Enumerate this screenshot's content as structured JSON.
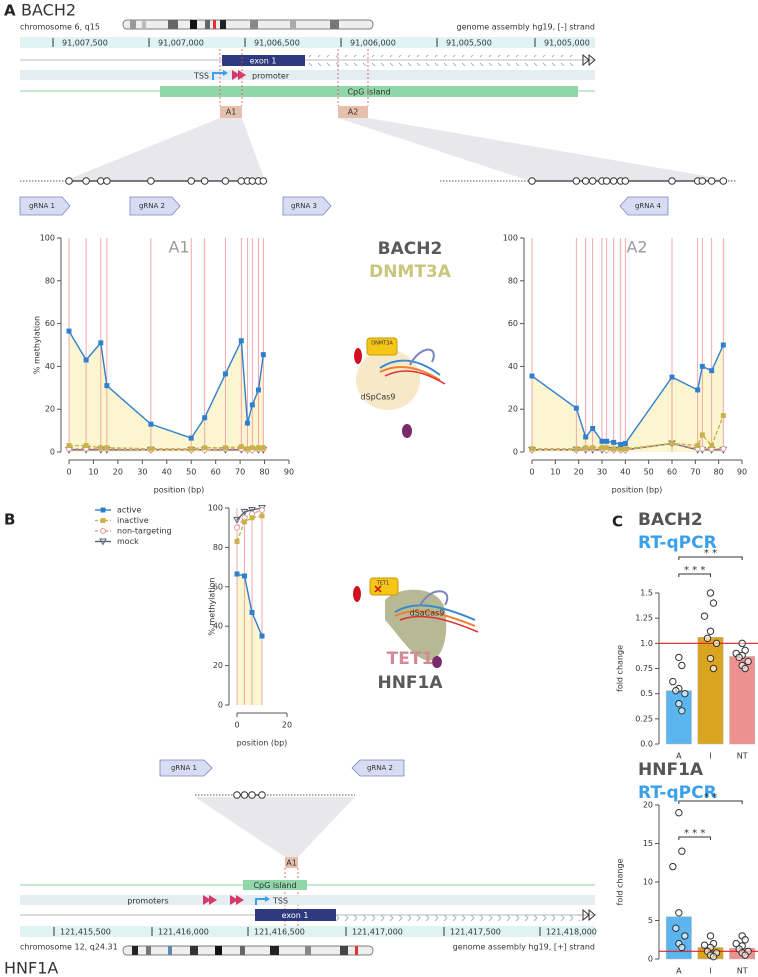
{
  "panel_labels": [
    "A",
    "B",
    "C"
  ],
  "bach2_locus": {
    "gene": "BACH2",
    "chromosome": "chromosome 6, q15",
    "assembly": "genome assembly hg19, [-] strand",
    "coordinates": [
      "91,007,500",
      "91,007,000",
      "91,006,500",
      "91,006,000",
      "91,005,500",
      "91,005,000"
    ],
    "exon": "exon 1",
    "tss": "TSS",
    "promoter": "promoter",
    "cpg_island": "CpG island",
    "regions": [
      "A1",
      "A2"
    ],
    "grnas": [
      "gRNA 1",
      "gRNA 2",
      "gRNA 3",
      "gRNA 4"
    ],
    "target": "BACH2",
    "effector": "DNMT3A",
    "dcas9": "dSpCas9"
  },
  "hnf1a_locus": {
    "gene": "HNF1A",
    "chromosome": "chromosome 12, q24.31",
    "assembly": "genome assembly hg19, [+] strand",
    "coordinates": [
      "121,415,500",
      "121,416,000",
      "121,416,500",
      "121,417,000",
      "121,417,500",
      "121,418,000"
    ],
    "exon": "exon 1",
    "tss": "TSS",
    "promoters": "promoters",
    "cpg_island": "CpG island",
    "regions": [
      "A1"
    ],
    "grnas": [
      "gRNA 1",
      "gRNA 2"
    ],
    "target": "HNF1A",
    "effector": "TET1",
    "dcas9": "dSaCas9"
  },
  "chart_data": [
    {
      "type": "line",
      "label": "A1",
      "ylabel": "% methylation",
      "xlabel": "position (bp)",
      "x": [
        0,
        7,
        13,
        15.5,
        33.5,
        50,
        55.5,
        64,
        70.5,
        73,
        75,
        77.5,
        79.5
      ],
      "series": [
        {
          "color": "#2f7fcf",
          "marker": "square",
          "dash": false,
          "fill": "#fbf5d0",
          "values": [
            56.5,
            43,
            51,
            31,
            13,
            6.5,
            16,
            36.5,
            52,
            13.5,
            22,
            29,
            45.5
          ]
        },
        {
          "color": "#c9b24a",
          "marker": "square",
          "dash": true,
          "values": [
            3,
            3,
            2,
            2,
            1.5,
            1.5,
            2,
            2,
            2.5,
            1.5,
            2,
            2,
            2
          ]
        },
        {
          "color": "#e39b9b",
          "marker": "circle",
          "dash": true,
          "values": [
            1.5,
            1.5,
            1.5,
            1.5,
            1,
            1,
            1,
            1.5,
            1.5,
            1,
            1,
            1.5,
            1.5
          ]
        },
        {
          "color": "#5a6470",
          "marker": "triangle",
          "dash": false,
          "values": [
            1,
            1,
            1,
            1,
            1,
            1,
            1,
            1,
            1,
            1,
            1,
            1,
            1
          ]
        }
      ],
      "xlim": [
        0,
        90
      ],
      "xticks": [
        0,
        10,
        20,
        30,
        40,
        50,
        60,
        70,
        80,
        90
      ],
      "ylim": [
        0,
        100
      ],
      "yticks": [
        0,
        20,
        40,
        60,
        80,
        100
      ],
      "cpg_lines": "#f2a0a0"
    },
    {
      "type": "line",
      "label": "A2",
      "xlabel": "position (bp)",
      "x": [
        0,
        19,
        23,
        26,
        30,
        32,
        35,
        38,
        40,
        60,
        71,
        73,
        77,
        82
      ],
      "series": [
        {
          "color": "#2f7fcf",
          "marker": "square",
          "dash": false,
          "fill": "#fbf5d0",
          "values": [
            35.5,
            20.5,
            7,
            11,
            5,
            5,
            4.5,
            3.5,
            4,
            35,
            29,
            40,
            38,
            50
          ]
        },
        {
          "color": "#c9b24a",
          "marker": "square",
          "dash": true,
          "values": [
            1.5,
            1.5,
            2,
            2,
            2,
            2,
            1.5,
            1.5,
            1.5,
            4,
            3,
            8,
            3,
            17
          ]
        },
        {
          "color": "#e39b9b",
          "marker": "circle",
          "dash": true,
          "values": [
            1,
            1,
            1.5,
            1.5,
            1.5,
            1,
            1,
            1,
            1,
            4,
            1.5,
            1.5,
            1.5,
            1.5
          ]
        },
        {
          "color": "#5a6470",
          "marker": "triangle",
          "dash": false,
          "values": [
            1,
            1,
            1,
            1,
            1,
            1,
            1,
            1,
            1,
            4,
            1,
            1,
            1,
            1
          ]
        }
      ],
      "xlim": [
        0,
        90
      ],
      "xticks": [
        0,
        10,
        20,
        30,
        40,
        50,
        60,
        70,
        80,
        90
      ],
      "ylim": [
        0,
        100
      ],
      "yticks": [
        0,
        20,
        40,
        60,
        80,
        100
      ],
      "cpg_lines": "#f2a0a0"
    },
    {
      "type": "line",
      "ylabel": "% methylation",
      "xlabel": "position (bp)",
      "legend": "left",
      "x": [
        0,
        3,
        6,
        10
      ],
      "series": [
        {
          "name": "active",
          "color": "#2f7fcf",
          "marker": "square",
          "dash": false,
          "fill": "#fbf5d0",
          "values": [
            66.5,
            65.5,
            47,
            35
          ]
        },
        {
          "name": "inactive",
          "color": "#c9b24a",
          "marker": "square",
          "dash": true,
          "values": [
            83,
            93,
            95,
            96
          ]
        },
        {
          "name": "non-targeting",
          "color": "#e39b9b",
          "marker": "circle",
          "dash": true,
          "values": [
            90,
            95,
            97,
            99
          ]
        },
        {
          "name": "mock",
          "color": "#5a6470",
          "marker": "triangle",
          "dash": false,
          "values": [
            94,
            98,
            99,
            100
          ]
        }
      ],
      "xlim": [
        0,
        20
      ],
      "xticks": [
        0,
        20
      ],
      "ylim": [
        0,
        100
      ],
      "yticks": [
        0,
        20,
        40,
        60,
        80,
        100
      ],
      "cpg_lines": "#f2a0a0"
    },
    {
      "type": "bar",
      "title": "BACH2",
      "subtitle": "RT-qPCR",
      "ylabel": "fold change",
      "categories": [
        "A",
        "I",
        "NT"
      ],
      "colors": [
        "#5bb6f0",
        "#d9a520",
        "#ec9090"
      ],
      "values": [
        0.53,
        1.06,
        0.87
      ],
      "points": [
        [
          0.86,
          0.78,
          0.62,
          0.55,
          0.53,
          0.5,
          0.4,
          0.33
        ],
        [
          1.5,
          1.4,
          1.27,
          1.12,
          1.05,
          1.0,
          0.85,
          0.75
        ],
        [
          1.0,
          0.93,
          0.9,
          0.88,
          0.86,
          0.82,
          0.78,
          0.75
        ]
      ],
      "reference_line": 1,
      "reference_color": "#e02020",
      "ylim": [
        0,
        1.5
      ],
      "yticks": [
        {
          "value": 0,
          "label": "0.0"
        },
        0.25,
        0.5,
        0.75,
        {
          "value": 1,
          "label": "1.0"
        },
        1.25,
        1.5
      ],
      "significance": [
        {
          "groups": [
            "A",
            "I"
          ],
          "label": "* * *"
        },
        {
          "groups": [
            "A",
            "NT"
          ],
          "label": "* *"
        }
      ]
    },
    {
      "type": "bar",
      "title": "HNF1A",
      "subtitle": "RT-qPCR",
      "ylabel": "fold change",
      "categories": [
        "A",
        "I",
        "NT"
      ],
      "colors": [
        "#5bb6f0",
        "#d9a520",
        "#ec9090"
      ],
      "values": [
        5.5,
        1.5,
        1.4
      ],
      "points": [
        [
          19,
          14,
          12,
          6,
          4,
          3,
          2,
          1.5
        ],
        [
          3,
          2,
          1.8,
          1.5,
          1,
          0.8,
          0.5,
          0.3
        ],
        [
          3,
          2.5,
          2,
          1.7,
          1.3,
          1,
          0.8,
          0.5
        ]
      ],
      "reference_line": 1,
      "reference_color": "#e02020",
      "ylim": [
        0,
        20
      ],
      "yticks": [
        0,
        5,
        10,
        15,
        20
      ],
      "significance": [
        {
          "groups": [
            "A",
            "I"
          ],
          "label": "* * *"
        },
        {
          "groups": [
            "A",
            "NT"
          ],
          "label": "* *"
        }
      ]
    }
  ]
}
